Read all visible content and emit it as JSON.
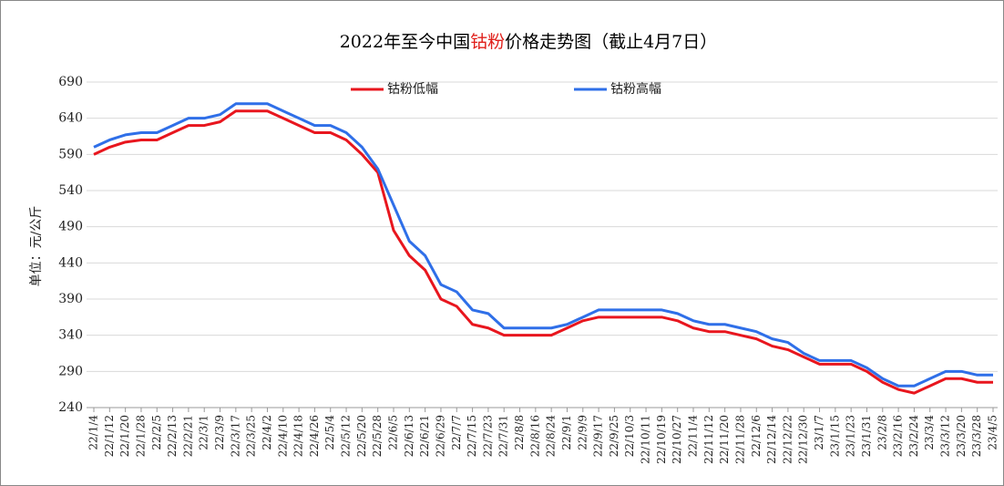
{
  "chart_data": {
    "type": "line",
    "title": [
      "2022年至今中国",
      "钴粉",
      "价格走势图（截止4月7日）"
    ],
    "title_colors": [
      "#000000",
      "#e0201b",
      "#000000"
    ],
    "ylabel": "单位：元/公斤",
    "categories": [
      "22/1/4",
      "22/1/12",
      "22/1/20",
      "22/1/28",
      "22/2/5",
      "22/2/13",
      "22/2/21",
      "22/3/1",
      "22/3/9",
      "22/3/17",
      "22/3/25",
      "22/4/2",
      "22/4/10",
      "22/4/18",
      "22/4/26",
      "22/5/4",
      "22/5/12",
      "22/5/20",
      "22/5/28",
      "22/6/5",
      "22/6/13",
      "22/6/21",
      "22/6/29",
      "22/7/7",
      "22/7/15",
      "22/7/23",
      "22/7/31",
      "22/8/8",
      "22/8/16",
      "22/8/24",
      "22/9/1",
      "22/9/9",
      "22/9/17",
      "22/9/25",
      "22/10/3",
      "22/10/11",
      "22/10/19",
      "22/10/27",
      "22/11/4",
      "22/11/12",
      "22/11/20",
      "22/11/28",
      "22/12/6",
      "22/12/14",
      "22/12/22",
      "22/12/30",
      "23/1/7",
      "23/1/15",
      "23/1/23",
      "23/1/31",
      "23/2/8",
      "23/2/16",
      "23/2/24",
      "23/3/4",
      "23/3/12",
      "23/3/20",
      "23/3/28",
      "23/4/5"
    ],
    "series": [
      {
        "name": "钴粉低幅",
        "color": "#e8161e",
        "values": [
          590,
          600,
          607,
          610,
          610,
          620,
          630,
          630,
          635,
          650,
          650,
          650,
          640,
          630,
          620,
          620,
          610,
          590,
          565,
          485,
          450,
          430,
          390,
          380,
          355,
          350,
          340,
          340,
          340,
          340,
          350,
          360,
          365,
          365,
          365,
          365,
          365,
          360,
          350,
          345,
          345,
          340,
          335,
          325,
          320,
          310,
          300,
          300,
          300,
          290,
          275,
          265,
          260,
          270,
          280,
          280,
          275,
          275
        ]
      },
      {
        "name": "钴粉高幅",
        "color": "#2f6fe8",
        "values": [
          600,
          610,
          617,
          620,
          620,
          630,
          640,
          640,
          645,
          660,
          660,
          660,
          650,
          640,
          630,
          630,
          620,
          600,
          570,
          520,
          470,
          450,
          410,
          400,
          375,
          370,
          350,
          350,
          350,
          350,
          355,
          365,
          375,
          375,
          375,
          375,
          375,
          370,
          360,
          355,
          355,
          350,
          345,
          335,
          330,
          315,
          305,
          305,
          305,
          295,
          280,
          270,
          270,
          280,
          290,
          290,
          285,
          285
        ]
      }
    ],
    "ylim": [
      240,
      690
    ],
    "yticks": [
      240,
      290,
      340,
      390,
      440,
      490,
      540,
      590,
      640,
      690
    ],
    "grid": true
  }
}
